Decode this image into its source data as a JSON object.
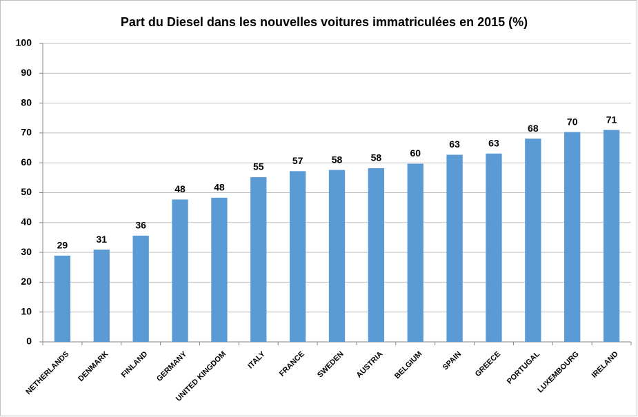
{
  "chart_data": {
    "type": "bar",
    "title": "Part du Diesel dans les nouvelles voitures immatriculées en 2015 (%)",
    "categories": [
      "NETHERLANDS",
      "DENMARK",
      "FINLAND",
      "GERMANY",
      "UNITED KINGDOM",
      "ITALY",
      "FRANCE",
      "SWEDEN",
      "AUSTRIA",
      "BELGIUM",
      "SPAIN",
      "GREECE",
      "PORTUGAL",
      "LUXEMBOURG",
      "IRELAND"
    ],
    "values": [
      28.9,
      30.9,
      35.6,
      47.7,
      48.3,
      55.2,
      57.2,
      57.6,
      58.2,
      59.7,
      62.7,
      63.1,
      68.1,
      70.3,
      71.0
    ],
    "value_labels": [
      "29",
      "31",
      "36",
      "48",
      "48",
      "55",
      "57",
      "58",
      "58",
      "60",
      "63",
      "63",
      "68",
      "70",
      "71"
    ],
    "color": "#5b9bd5",
    "ylim": [
      0,
      100
    ],
    "yticks": [
      0,
      10,
      20,
      30,
      40,
      50,
      60,
      70,
      80,
      90,
      100
    ],
    "grid": true
  }
}
